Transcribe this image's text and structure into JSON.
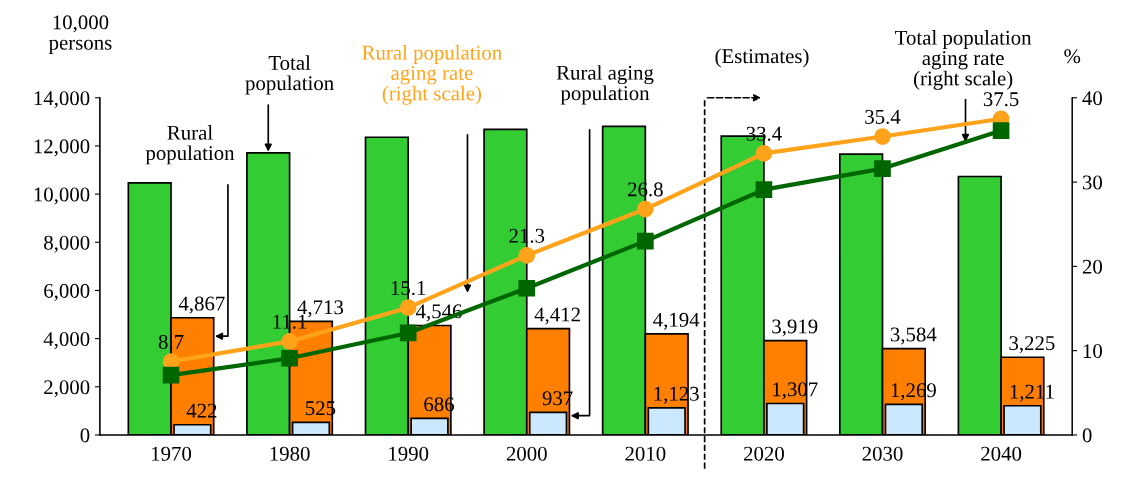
{
  "chart_data": {
    "type": "bar",
    "categories": [
      "1970",
      "1980",
      "1990",
      "2000",
      "2010",
      "2020",
      "2030",
      "2040"
    ],
    "ylabel": "10,000 persons",
    "y2label": "%",
    "ylim": [
      0,
      14000
    ],
    "yticks": [
      {
        "value": 0,
        "label": "0"
      },
      {
        "value": 2000,
        "label": "2,000"
      },
      {
        "value": 4000,
        "label": "4,000"
      },
      {
        "value": 6000,
        "label": "6,000"
      },
      {
        "value": 8000,
        "label": "8,000"
      },
      {
        "value": 10000,
        "label": "10,000"
      },
      {
        "value": 12000,
        "label": "12,000"
      },
      {
        "value": 14000,
        "label": "14,000"
      }
    ],
    "y2lim": [
      0,
      40
    ],
    "y2ticks": [
      0,
      10,
      20,
      30,
      40
    ],
    "series": [
      {
        "name": "Total population",
        "color": "#33cc33",
        "values": [
          10470,
          11710,
          12360,
          12690,
          12810,
          12410,
          11660,
          10730
        ]
      },
      {
        "name": "Rural population",
        "color": "#ff7f00",
        "values": [
          4867,
          4713,
          4546,
          4412,
          4194,
          3919,
          3584,
          3225
        ],
        "value_labels": [
          "4,867",
          "4,713",
          "4,546",
          "4,412",
          "4,194",
          "3,919",
          "3,584",
          "3,225"
        ]
      },
      {
        "name": "Rural aging population",
        "color": "#cce8ff",
        "values": [
          422,
          525,
          686,
          937,
          1123,
          1307,
          1269,
          1211
        ],
        "value_labels": [
          "422",
          "525",
          "686",
          "937",
          "1,123",
          "1,307",
          "1,269",
          "1,211"
        ]
      },
      {
        "name": "Rural population aging rate (right scale)",
        "type": "line",
        "axis": "y2",
        "marker": "circle",
        "color": "#ffa31a",
        "values": [
          8.7,
          11.1,
          15.1,
          21.3,
          26.8,
          33.4,
          35.4,
          37.5
        ],
        "value_labels": [
          "8.7",
          "11.1",
          "15.1",
          "21.3",
          "26.8",
          "33.4",
          "35.4",
          "37.5"
        ]
      },
      {
        "name": "Total population aging rate (right scale)",
        "type": "line",
        "axis": "y2",
        "marker": "square",
        "color": "#006600",
        "values": [
          7.1,
          9.1,
          12.1,
          17.4,
          23.0,
          29.1,
          31.6,
          36.1
        ]
      }
    ],
    "annotations": [
      "(Estimates)"
    ],
    "grid": false
  }
}
